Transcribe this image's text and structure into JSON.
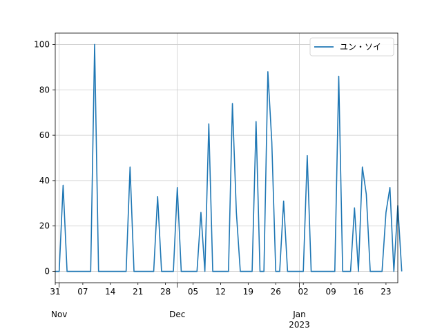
{
  "chart_data": {
    "type": "line",
    "title": "",
    "xlabel": "",
    "ylabel": "",
    "x_start": "2022-10-31",
    "xlim": [
      "2022-10-31",
      "2023-01-26"
    ],
    "ylim": [
      -5,
      105
    ],
    "y_ticks": [
      0,
      20,
      40,
      60,
      80,
      100
    ],
    "x_minor_ticks": [
      {
        "date": "2022-10-31",
        "label": "31"
      },
      {
        "date": "2022-11-07",
        "label": "07"
      },
      {
        "date": "2022-11-14",
        "label": "14"
      },
      {
        "date": "2022-11-21",
        "label": "21"
      },
      {
        "date": "2022-11-28",
        "label": "28"
      },
      {
        "date": "2022-12-05",
        "label": "05"
      },
      {
        "date": "2022-12-12",
        "label": "12"
      },
      {
        "date": "2022-12-19",
        "label": "19"
      },
      {
        "date": "2022-12-26",
        "label": "26"
      },
      {
        "date": "2023-01-02",
        "label": "02"
      },
      {
        "date": "2023-01-09",
        "label": "09"
      },
      {
        "date": "2023-01-16",
        "label": "16"
      },
      {
        "date": "2023-01-23",
        "label": "23"
      }
    ],
    "x_major_ticks": [
      {
        "date": "2022-11-01",
        "label": "Nov"
      },
      {
        "date": "2022-12-01",
        "label": "Dec"
      },
      {
        "date": "2023-01-01",
        "label": "Jan",
        "sublabel": "2023"
      }
    ],
    "grid": true,
    "legend_position": "upper right",
    "series": [
      {
        "name": "ユン・ソイ",
        "color": "#1f77b4",
        "values": [
          0,
          0,
          38,
          0,
          0,
          0,
          0,
          0,
          0,
          0,
          100,
          0,
          0,
          0,
          0,
          0,
          0,
          0,
          0,
          46,
          0,
          0,
          0,
          0,
          0,
          0,
          33,
          0,
          0,
          0,
          0,
          37,
          0,
          0,
          0,
          0,
          0,
          26,
          0,
          65,
          0,
          0,
          0,
          0,
          0,
          74,
          26,
          0,
          0,
          0,
          0,
          66,
          0,
          0,
          88,
          57,
          0,
          0,
          31,
          0,
          0,
          0,
          0,
          0,
          51,
          0,
          0,
          0,
          0,
          0,
          0,
          0,
          86,
          0,
          0,
          0,
          28,
          0,
          46,
          34,
          0,
          0,
          0,
          0,
          26,
          37,
          0,
          29,
          0
        ]
      }
    ]
  }
}
